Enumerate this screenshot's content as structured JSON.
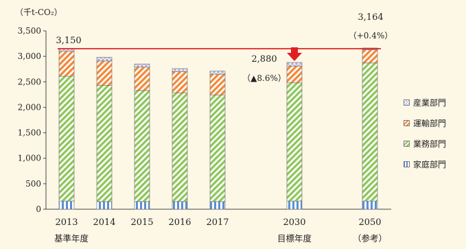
{
  "chart_data": {
    "type": "bar",
    "stacked": true,
    "unit_label": "（千t-CO₂）",
    "categories": [
      "2013",
      "2014",
      "2015",
      "2016",
      "2017",
      "2030",
      "2050"
    ],
    "category_sublabels": [
      "基準年度",
      "",
      "",
      "",
      "",
      "目標年度",
      "（参考）"
    ],
    "series": [
      {
        "name": "家庭部門",
        "values": [
          160,
          150,
          150,
          150,
          150,
          160,
          160
        ],
        "color": "#5b8fd4",
        "pattern": "vertical"
      },
      {
        "name": "業務部門",
        "values": [
          2450,
          2280,
          2180,
          2130,
          2090,
          2320,
          2710
        ],
        "color": "#8fc65c",
        "pattern": "diagonal"
      },
      {
        "name": "運輸部門",
        "values": [
          490,
          480,
          460,
          420,
          410,
          330,
          260
        ],
        "color": "#f28a3a",
        "pattern": "diagonal"
      },
      {
        "name": "産業部門",
        "values": [
          50,
          70,
          60,
          60,
          60,
          70,
          34
        ],
        "color": "#6f6bb5",
        "pattern": "cross"
      }
    ],
    "ylim": [
      0,
      3500
    ],
    "yticks": [
      "0",
      "500",
      "1,000",
      "1,500",
      "2,000",
      "2,500",
      "3,000",
      "3,500"
    ],
    "reference_line": 3150,
    "annotations": {
      "base_value": "3,150",
      "target_value": "2,880",
      "target_change": "（▲8.6%）",
      "ref_value": "3,164",
      "ref_change": "（+0.4%）"
    },
    "legend_position": "right",
    "grid": false
  }
}
